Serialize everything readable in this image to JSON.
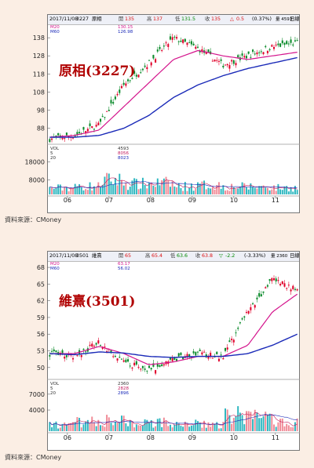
{
  "source_label": "資料來源：CMoney",
  "chart_data": [
    {
      "type": "candlestick",
      "title": "原相(3227)",
      "header": {
        "date": "2017/11/08",
        "code": "3227",
        "name": "原相",
        "open_label": "開",
        "open": "135",
        "high_label": "高",
        "high": "137",
        "low_label": "低",
        "low": "131.5",
        "close_label": "收",
        "close": "135",
        "change": "0.5",
        "change_pct": "(0.37%)",
        "volume": "量 4593",
        "period_label": "日線"
      },
      "ma_legend": [
        {
          "name": "M20",
          "value": "130.15",
          "color": "#d4148c"
        },
        {
          "name": "M60",
          "value": "126.98",
          "color": "#1a2ab8"
        }
      ],
      "volume_legend": [
        {
          "name": "VOL",
          "value": "4593"
        },
        {
          "name": "5",
          "value": "8056"
        },
        {
          "name": "20",
          "value": "8023"
        }
      ],
      "x_ticks": [
        "06",
        "07",
        "08",
        "09",
        "10",
        "11"
      ],
      "y_ticks": [
        88,
        98,
        108,
        118,
        128,
        138
      ],
      "ylim": [
        80,
        145
      ],
      "volume_ticks": [
        8000,
        18000
      ],
      "volume_ylim": [
        0,
        27000
      ],
      "price_series": [
        {
          "month": "06",
          "close": 82
        },
        {
          "month": "07",
          "close": 84
        },
        {
          "month": "08",
          "close": 90
        },
        {
          "month": "08",
          "close": 112
        },
        {
          "month": "08",
          "close": 124
        },
        {
          "month": "09",
          "close": 138
        },
        {
          "month": "09",
          "close": 132
        },
        {
          "month": "10",
          "close": 123
        },
        {
          "month": "10",
          "close": 128
        },
        {
          "month": "11",
          "close": 133
        },
        {
          "month": "11",
          "close": 135
        }
      ],
      "ma20": [
        {
          "month": "06",
          "value": 83
        },
        {
          "month": "07",
          "value": 84
        },
        {
          "month": "08",
          "value": 87
        },
        {
          "month": "08",
          "value": 100
        },
        {
          "month": "08",
          "value": 113
        },
        {
          "month": "09",
          "value": 126
        },
        {
          "month": "09",
          "value": 131
        },
        {
          "month": "10",
          "value": 128
        },
        {
          "month": "10",
          "value": 126
        },
        {
          "month": "11",
          "value": 128
        },
        {
          "month": "11",
          "value": 130
        }
      ],
      "ma60": [
        {
          "month": "06",
          "value": 83
        },
        {
          "month": "07",
          "value": 83
        },
        {
          "month": "08",
          "value": 84
        },
        {
          "month": "08",
          "value": 88
        },
        {
          "month": "08",
          "value": 95
        },
        {
          "month": "09",
          "value": 105
        },
        {
          "month": "09",
          "value": 112
        },
        {
          "month": "10",
          "value": 117
        },
        {
          "month": "10",
          "value": 121
        },
        {
          "month": "11",
          "value": 124
        },
        {
          "month": "11",
          "value": 127
        }
      ]
    },
    {
      "type": "candlestick",
      "title": "維熹(3501)",
      "header": {
        "date": "2017/11/08",
        "code": "3501",
        "name": "維熹",
        "open_label": "開",
        "open": "65",
        "high_label": "高",
        "high": "65.4",
        "low_label": "低",
        "low": "63.6",
        "close_label": "收",
        "close": "63.8",
        "change": "-2.2",
        "change_pct": "(-3.33%)",
        "volume": "量 2360",
        "period_label": "日線"
      },
      "ma_legend": [
        {
          "name": "M20",
          "value": "63.17",
          "color": "#d4148c"
        },
        {
          "name": "M60",
          "value": "56.02",
          "color": "#1a2ab8"
        }
      ],
      "volume_legend": [
        {
          "name": "VOL",
          "value": "2360"
        },
        {
          "name": "5",
          "value": "2828"
        },
        {
          "name": "20",
          "value": "2896"
        }
      ],
      "x_ticks": [
        "06",
        "07",
        "08",
        "09",
        "10",
        "11"
      ],
      "y_ticks": [
        50,
        53,
        56,
        59,
        62,
        65,
        68
      ],
      "ylim": [
        48,
        69
      ],
      "volume_ticks": [
        4000,
        7000
      ],
      "volume_ylim": [
        0,
        9500
      ],
      "price_series": [
        {
          "month": "06",
          "close": 52.5
        },
        {
          "month": "07",
          "close": 52
        },
        {
          "month": "07",
          "close": 54.5
        },
        {
          "month": "08",
          "close": 51
        },
        {
          "month": "08",
          "close": 49.5
        },
        {
          "month": "09",
          "close": 51.5
        },
        {
          "month": "09",
          "close": 52.5
        },
        {
          "month": "10",
          "close": 52
        },
        {
          "month": "10",
          "close": 60
        },
        {
          "month": "11",
          "close": 66
        },
        {
          "month": "11",
          "close": 63.8
        }
      ],
      "ma20": [
        {
          "month": "06",
          "value": 52.5
        },
        {
          "month": "07",
          "value": 52.5
        },
        {
          "month": "07",
          "value": 53.8
        },
        {
          "month": "08",
          "value": 52.5
        },
        {
          "month": "08",
          "value": 50.5
        },
        {
          "month": "09",
          "value": 51
        },
        {
          "month": "09",
          "value": 52
        },
        {
          "month": "10",
          "value": 52
        },
        {
          "month": "10",
          "value": 54
        },
        {
          "month": "11",
          "value": 60
        },
        {
          "month": "11",
          "value": 63.2
        }
      ],
      "ma60": [
        {
          "month": "06",
          "value": 52.5
        },
        {
          "month": "07",
          "value": 52.3
        },
        {
          "month": "07",
          "value": 52.8
        },
        {
          "month": "08",
          "value": 52.6
        },
        {
          "month": "08",
          "value": 52
        },
        {
          "month": "09",
          "value": 51.8
        },
        {
          "month": "09",
          "value": 52
        },
        {
          "month": "10",
          "value": 52
        },
        {
          "month": "10",
          "value": 52.5
        },
        {
          "month": "11",
          "value": 54
        },
        {
          "month": "11",
          "value": 56
        }
      ]
    }
  ]
}
